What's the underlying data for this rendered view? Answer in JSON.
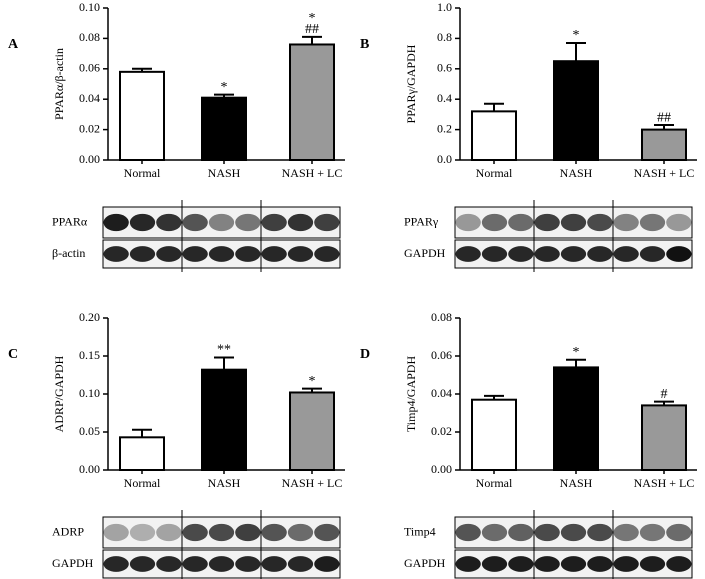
{
  "chart_data": [
    {
      "type": "bar",
      "panel": "A",
      "ylabel": "PPARα/β-actin",
      "categories": [
        "Normal",
        "NASH",
        "NASH + LC"
      ],
      "colors": [
        "#ffffff",
        "#000000",
        "#999999"
      ],
      "values": [
        0.058,
        0.041,
        0.076
      ],
      "errors": [
        0.002,
        0.002,
        0.005
      ],
      "annotations": [
        null,
        [
          "*"
        ],
        [
          "*",
          "##"
        ]
      ],
      "ylim": [
        0,
        0.1
      ],
      "yticks": [
        {
          "value": 0,
          "label": "0.00"
        },
        {
          "value": 0.02,
          "label": "0.02"
        },
        {
          "value": 0.04,
          "label": "0.04"
        },
        {
          "value": 0.06,
          "label": "0.06"
        },
        {
          "value": 0.08,
          "label": "0.08"
        },
        {
          "value": 0.1,
          "label": "0.10"
        }
      ],
      "blots": [
        "PPARα",
        "β-actin"
      ]
    },
    {
      "type": "bar",
      "panel": "B",
      "ylabel": "PPARγ/GAPDH",
      "categories": [
        "Normal",
        "NASH",
        "NASH + LC"
      ],
      "colors": [
        "#ffffff",
        "#000000",
        "#999999"
      ],
      "values": [
        0.32,
        0.65,
        0.2
      ],
      "errors": [
        0.05,
        0.12,
        0.03
      ],
      "annotations": [
        null,
        [
          "*"
        ],
        [
          "##"
        ]
      ],
      "ylim": [
        0,
        1
      ],
      "yticks": [
        {
          "value": 0,
          "label": "0.0"
        },
        0.2,
        0.4,
        0.6,
        0.8,
        {
          "value": 1,
          "label": "1.0"
        }
      ],
      "blots": [
        "PPARγ",
        "GAPDH"
      ]
    },
    {
      "type": "bar",
      "panel": "C",
      "ylabel": "ADRP/GAPDH",
      "categories": [
        "Normal",
        "NASH",
        "NASH + LC"
      ],
      "colors": [
        "#ffffff",
        "#000000",
        "#999999"
      ],
      "values": [
        0.043,
        0.132,
        0.102
      ],
      "errors": [
        0.01,
        0.016,
        0.005
      ],
      "annotations": [
        null,
        [
          "**"
        ],
        [
          "*"
        ]
      ],
      "ylim": [
        0,
        0.2
      ],
      "yticks": [
        {
          "value": 0,
          "label": "0.00"
        },
        0.05,
        {
          "value": 0.1,
          "label": "0.10"
        },
        0.15,
        {
          "value": 0.2,
          "label": "0.20"
        }
      ],
      "blots": [
        "ADRP",
        "GAPDH"
      ]
    },
    {
      "type": "bar",
      "panel": "D",
      "ylabel": "Timp4/GAPDH",
      "categories": [
        "Normal",
        "NASH",
        "NASH + LC"
      ],
      "colors": [
        "#ffffff",
        "#000000",
        "#999999"
      ],
      "values": [
        0.037,
        0.054,
        0.034
      ],
      "errors": [
        0.002,
        0.004,
        0.002
      ],
      "annotations": [
        null,
        [
          "*"
        ],
        [
          "#"
        ]
      ],
      "ylim": [
        0,
        0.08
      ],
      "yticks": [
        {
          "value": 0,
          "label": "0.00"
        },
        0.02,
        0.04,
        0.06,
        0.08
      ],
      "blots": [
        "Timp4",
        "GAPDH"
      ]
    }
  ]
}
